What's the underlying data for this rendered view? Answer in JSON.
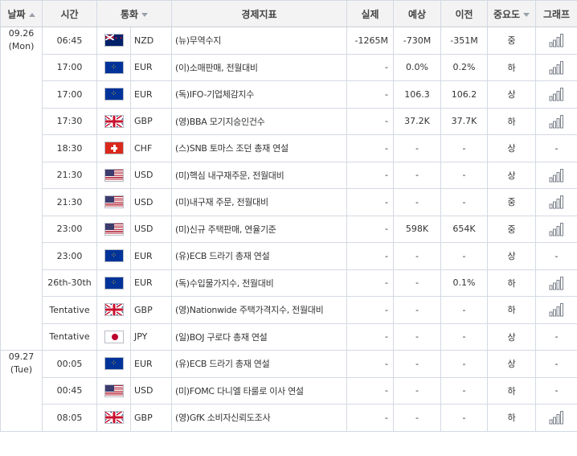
{
  "header": {
    "date": "날짜",
    "time": "시간",
    "currency": "통화",
    "indicator": "경제지표",
    "actual": "실제",
    "forecast": "예상",
    "previous": "이전",
    "importance": "중요도",
    "graph": "그래프"
  },
  "icons": {
    "date_sort": "sort-asc-icon",
    "currency_sort": "sort-desc-icon",
    "importance_sort": "sort-desc-icon",
    "graph": "bar-graph-icon"
  },
  "date_groups": [
    {
      "date": "09.26",
      "day": "(Mon)"
    },
    {
      "date": "09.27",
      "day": "(Tue)"
    }
  ],
  "rows": [
    {
      "time": "06:45",
      "flag": "nzd",
      "currency": "NZD",
      "event": "(뉴)무역수지",
      "actual": "-1265M",
      "forecast": "-730M",
      "previous": "-351M",
      "importance": "중",
      "graph": true
    },
    {
      "time": "17:00",
      "flag": "eur",
      "currency": "EUR",
      "event": "(이)소매판매, 전월대비",
      "actual": "-",
      "forecast": "0.0%",
      "previous": "0.2%",
      "importance": "하",
      "graph": true
    },
    {
      "time": "17:00",
      "flag": "eur",
      "currency": "EUR",
      "event": "(독)IFO-기업체감지수",
      "actual": "-",
      "forecast": "106.3",
      "previous": "106.2",
      "importance": "상",
      "graph": true
    },
    {
      "time": "17:30",
      "flag": "gbp",
      "currency": "GBP",
      "event": "(영)BBA 모기지승인건수",
      "actual": "-",
      "forecast": "37.2K",
      "previous": "37.7K",
      "importance": "하",
      "graph": true
    },
    {
      "time": "18:30",
      "flag": "chf",
      "currency": "CHF",
      "event": "(스)SNB 토마스 조던 총재 연설",
      "actual": "-",
      "forecast": "-",
      "previous": "-",
      "importance": "상",
      "graph": false
    },
    {
      "time": "21:30",
      "flag": "usd",
      "currency": "USD",
      "event": "(미)핵심 내구재주문, 전월대비",
      "actual": "-",
      "forecast": "-",
      "previous": "-",
      "importance": "상",
      "graph": true
    },
    {
      "time": "21:30",
      "flag": "usd",
      "currency": "USD",
      "event": "(미)내구재 주문, 전월대비",
      "actual": "-",
      "forecast": "-",
      "previous": "-",
      "importance": "중",
      "graph": true
    },
    {
      "time": "23:00",
      "flag": "usd",
      "currency": "USD",
      "event": "(미)신규 주택판매, 연율기준",
      "actual": "-",
      "forecast": "598K",
      "previous": "654K",
      "importance": "중",
      "graph": true
    },
    {
      "time": "23:00",
      "flag": "eur",
      "currency": "EUR",
      "event": "(유)ECB 드라기 총재 연설",
      "actual": "-",
      "forecast": "-",
      "previous": "-",
      "importance": "상",
      "graph": false
    },
    {
      "time": "26th-30th",
      "flag": "eur",
      "currency": "EUR",
      "event": "(독)수입물가지수, 전월대비",
      "actual": "-",
      "forecast": "-",
      "previous": "0.1%",
      "importance": "하",
      "graph": true
    },
    {
      "time": "Tentative",
      "flag": "gbp",
      "currency": "GBP",
      "event": "(영)Nationwide 주택가격지수, 전월대비",
      "actual": "-",
      "forecast": "-",
      "previous": "-",
      "importance": "하",
      "graph": true
    },
    {
      "time": "Tentative",
      "flag": "jpy",
      "currency": "JPY",
      "event": "(일)BOJ 구로다 총재 연설",
      "actual": "-",
      "forecast": "-",
      "previous": "-",
      "importance": "상",
      "graph": false
    },
    {
      "time": "00:05",
      "flag": "eur",
      "currency": "EUR",
      "event": "(유)ECB 드라기 총재 연설",
      "actual": "-",
      "forecast": "-",
      "previous": "-",
      "importance": "상",
      "graph": false
    },
    {
      "time": "00:45",
      "flag": "usd",
      "currency": "USD",
      "event": "(미)FOMC 다니엘 타룰로 이사 연설",
      "actual": "-",
      "forecast": "-",
      "previous": "-",
      "importance": "하",
      "graph": false
    },
    {
      "time": "08:05",
      "flag": "gbp",
      "currency": "GBP",
      "event": "(영)GfK 소비자신뢰도조사",
      "actual": "-",
      "forecast": "-",
      "previous": "-",
      "importance": "하",
      "graph": true
    }
  ],
  "no_graph_text": "-",
  "colors": {
    "header_bg": "#f3f3f4",
    "border": "#d4d9e2",
    "graph_icon": "#7a7f88"
  }
}
